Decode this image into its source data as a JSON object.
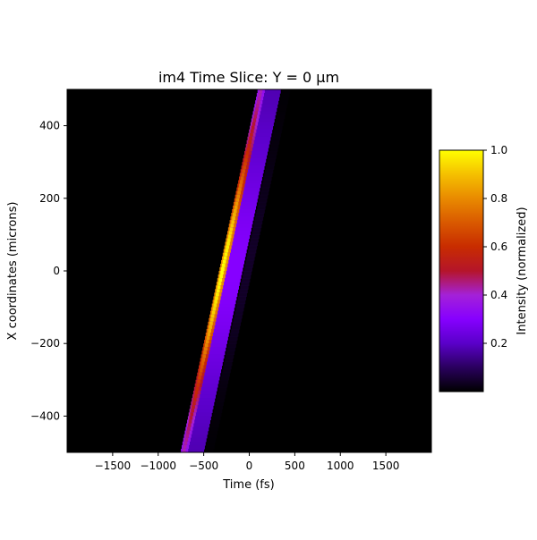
{
  "chart_data": {
    "type": "heatmap",
    "title": "im4 Time Slice: Y = 0 µm",
    "xlabel": "Time (fs)",
    "ylabel": "X coordinates (microns)",
    "xlim": [
      -2000,
      2000
    ],
    "ylim": [
      -500,
      500
    ],
    "x_ticks": [
      {
        "value": -1500,
        "label": "−1500"
      },
      {
        "value": -1000,
        "label": "−1000"
      },
      {
        "value": -500,
        "label": "−500"
      },
      {
        "value": 0,
        "label": "0"
      },
      {
        "value": 500,
        "label": "500"
      },
      {
        "value": 1000,
        "label": "1000"
      },
      {
        "value": 1500,
        "label": "1500"
      }
    ],
    "y_ticks": [
      {
        "value": 400,
        "label": "400"
      },
      {
        "value": 200,
        "label": "200"
      },
      {
        "value": 0,
        "label": "0"
      },
      {
        "value": -200,
        "label": "−200"
      },
      {
        "value": -400,
        "label": "−400"
      }
    ],
    "colormap": "gnuplot",
    "colorbar": {
      "label": "Intensity (normalized)",
      "range": [
        0,
        1
      ],
      "ticks": [
        {
          "value": 0.2,
          "label": "0.2"
        },
        {
          "value": 0.4,
          "label": "0.4"
        },
        {
          "value": 0.6,
          "label": "0.6"
        },
        {
          "value": 0.8,
          "label": "0.8"
        },
        {
          "value": 1.0,
          "label": "1.0"
        }
      ],
      "stops": [
        {
          "v": 0.0,
          "color": "#000000"
        },
        {
          "v": 0.1,
          "color": "#2a005e"
        },
        {
          "v": 0.2,
          "color": "#5a00c9"
        },
        {
          "v": 0.3,
          "color": "#8600ff"
        },
        {
          "v": 0.4,
          "color": "#a421d8"
        },
        {
          "v": 0.5,
          "color": "#b5152a"
        },
        {
          "v": 0.6,
          "color": "#c82c00"
        },
        {
          "v": 0.7,
          "color": "#d95900"
        },
        {
          "v": 0.8,
          "color": "#e98a00"
        },
        {
          "v": 0.9,
          "color": "#f5c000"
        },
        {
          "v": 1.0,
          "color": "#ffff00"
        }
      ]
    },
    "pulse": {
      "ridge": [
        {
          "x_um": -500,
          "t_fs": -700
        },
        {
          "x_um": 500,
          "t_fs": 150
        }
      ],
      "peak_intensity": 1.0,
      "peak_at_x_um": 0,
      "trailing_band_offset_fs": 120,
      "weak_echo_offset_fs": 260
    }
  }
}
